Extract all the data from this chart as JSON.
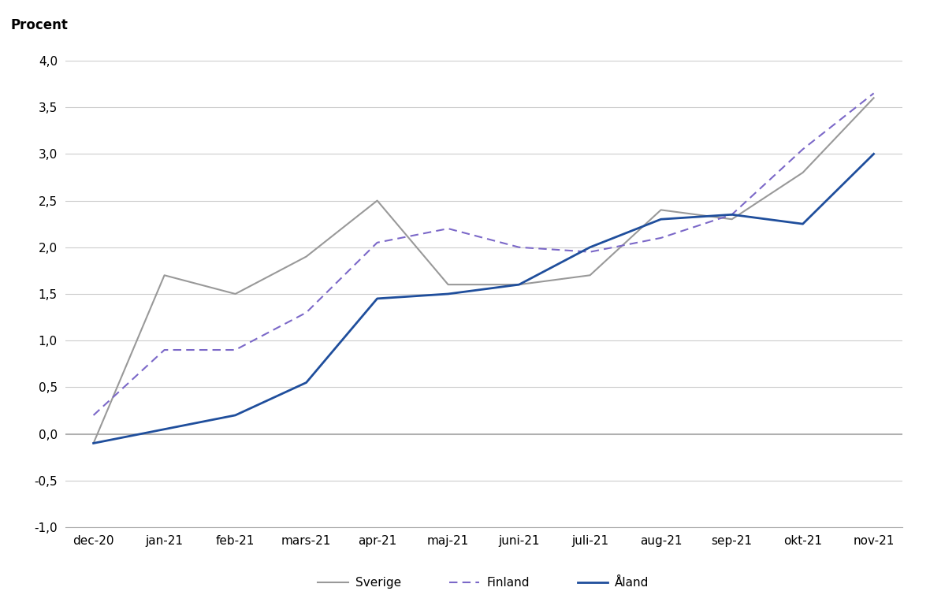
{
  "x_labels": [
    "dec-20",
    "jan-21",
    "feb-21",
    "mars-21",
    "apr-21",
    "maj-21",
    "juni-21",
    "juli-21",
    "aug-21",
    "sep-21",
    "okt-21",
    "nov-21"
  ],
  "sverige": [
    -0.1,
    1.7,
    1.5,
    1.9,
    2.5,
    1.6,
    1.6,
    1.7,
    2.4,
    2.3,
    2.8,
    3.6
  ],
  "finland": [
    0.2,
    0.9,
    0.9,
    1.3,
    2.05,
    2.2,
    2.0,
    1.95,
    2.1,
    2.35,
    3.05,
    3.65
  ],
  "aland": [
    -0.1,
    0.05,
    0.2,
    0.55,
    1.45,
    1.5,
    1.6,
    2.0,
    2.3,
    2.35,
    2.25,
    3.0
  ],
  "sverige_color": "#999999",
  "finland_color": "#7b68c8",
  "aland_color": "#1f4e9c",
  "ylim": [
    -1.0,
    4.0
  ],
  "yticks": [
    -1.0,
    -0.5,
    0.0,
    0.5,
    1.0,
    1.5,
    2.0,
    2.5,
    3.0,
    3.5,
    4.0
  ],
  "ylabel": "Procent",
  "legend_sverige": "Sverige",
  "legend_finland": "Finland",
  "legend_aland": "Åland",
  "background_color": "#ffffff",
  "grid_color": "#cccccc"
}
